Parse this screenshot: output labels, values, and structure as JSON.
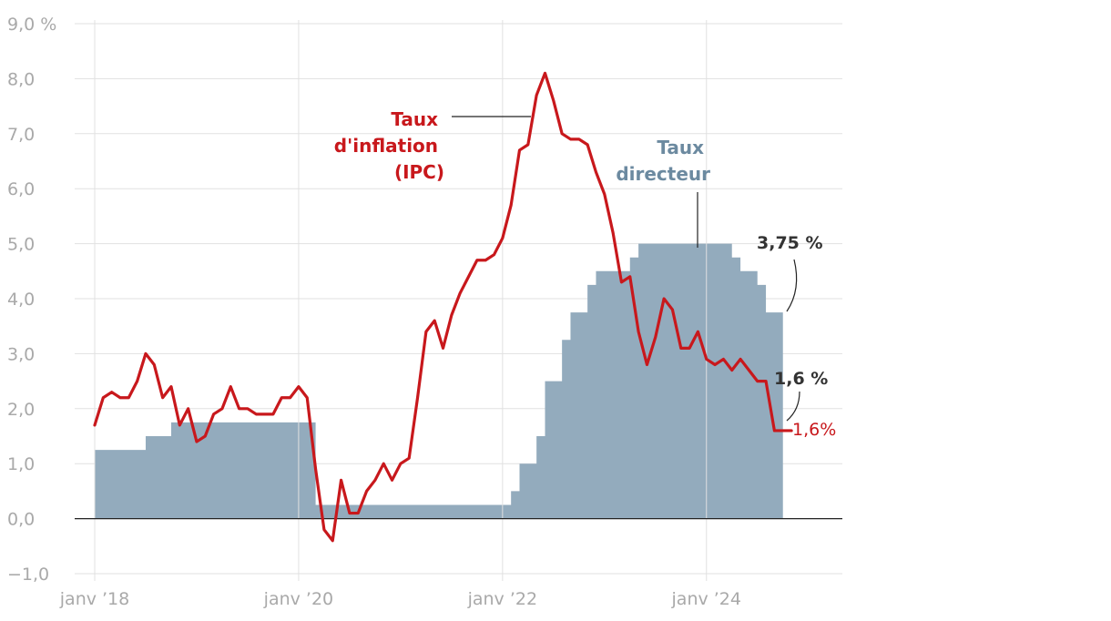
{
  "chart_data": {
    "type": "line",
    "x_start": "2018-01",
    "x_frequency": "monthly",
    "ylim": [
      -1,
      9
    ],
    "y_ticks": [
      {
        "value": 9,
        "label": "9,0 %"
      },
      {
        "value": 8,
        "label": "8,0"
      },
      {
        "value": 7,
        "label": "7,0"
      },
      {
        "value": 6,
        "label": "6,0"
      },
      {
        "value": 5,
        "label": "5,0"
      },
      {
        "value": 4,
        "label": "4,0"
      },
      {
        "value": 3,
        "label": "3,0"
      },
      {
        "value": 2,
        "label": "2,0"
      },
      {
        "value": 1,
        "label": "1,0"
      },
      {
        "value": 0,
        "label": "0,0"
      },
      {
        "value": -1,
        "label": "−1,0"
      }
    ],
    "x_ticks": [
      {
        "date": "2018-01",
        "label": "janv ’18"
      },
      {
        "date": "2020-01",
        "label": "janv ’20"
      },
      {
        "date": "2022-01",
        "label": "janv ’22"
      },
      {
        "date": "2024-01",
        "label": "janv ’24"
      }
    ],
    "grid": true,
    "series": [
      {
        "name": "Taux d'inflation (IPC)",
        "kind": "line",
        "color": "#c8181c",
        "values": [
          1.7,
          2.2,
          2.3,
          2.2,
          2.2,
          2.5,
          3.0,
          2.8,
          2.2,
          2.4,
          1.7,
          2.0,
          1.4,
          1.5,
          1.9,
          2.0,
          2.4,
          2.0,
          2.0,
          1.9,
          1.9,
          1.9,
          2.2,
          2.2,
          2.4,
          2.2,
          0.9,
          -0.2,
          -0.4,
          0.7,
          0.1,
          0.1,
          0.5,
          0.7,
          1.0,
          0.7,
          1.0,
          1.1,
          2.2,
          3.4,
          3.6,
          3.1,
          3.7,
          4.1,
          4.4,
          4.7,
          4.7,
          4.8,
          5.1,
          5.7,
          6.7,
          6.8,
          7.7,
          8.1,
          7.6,
          7.0,
          6.9,
          6.9,
          6.8,
          6.3,
          5.9,
          5.2,
          4.3,
          4.4,
          3.4,
          2.8,
          3.3,
          4.0,
          3.8,
          3.1,
          3.1,
          3.4,
          2.9,
          2.8,
          2.9,
          2.7,
          2.9,
          2.7,
          2.5,
          2.5,
          1.6,
          1.6,
          1.6
        ]
      },
      {
        "name": "Taux directeur",
        "kind": "step-area",
        "color": "#93abbd",
        "values": [
          1.25,
          1.25,
          1.25,
          1.25,
          1.25,
          1.25,
          1.5,
          1.5,
          1.5,
          1.75,
          1.75,
          1.75,
          1.75,
          1.75,
          1.75,
          1.75,
          1.75,
          1.75,
          1.75,
          1.75,
          1.75,
          1.75,
          1.75,
          1.75,
          1.75,
          1.75,
          0.25,
          0.25,
          0.25,
          0.25,
          0.25,
          0.25,
          0.25,
          0.25,
          0.25,
          0.25,
          0.25,
          0.25,
          0.25,
          0.25,
          0.25,
          0.25,
          0.25,
          0.25,
          0.25,
          0.25,
          0.25,
          0.25,
          0.25,
          0.5,
          1.0,
          1.0,
          1.5,
          2.5,
          2.5,
          3.25,
          3.75,
          3.75,
          4.25,
          4.5,
          4.5,
          4.5,
          4.5,
          4.75,
          5.0,
          5.0,
          5.0,
          5.0,
          5.0,
          5.0,
          5.0,
          5.0,
          5.0,
          5.0,
          5.0,
          4.75,
          4.5,
          4.5,
          4.25,
          3.75,
          3.75
        ]
      }
    ],
    "annotations": {
      "inflation_label": [
        "Taux",
        "d'inflation",
        "(IPC)"
      ],
      "rate_label": [
        "Taux",
        "directeur"
      ],
      "rate_last_label": "3,75 %",
      "rate_last_value": 3.75,
      "inflation_last_label_dark": "1,6 %",
      "inflation_last_label_red": "1,6%",
      "inflation_last_value": 1.6
    }
  }
}
